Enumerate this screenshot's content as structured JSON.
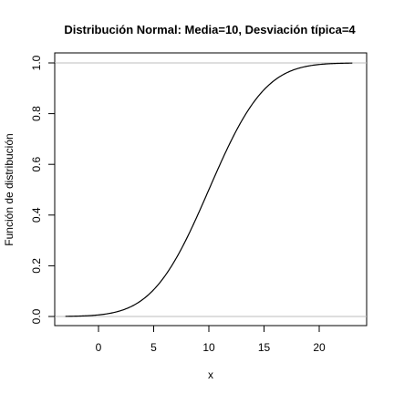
{
  "chart_data": {
    "type": "line",
    "title": "Distribución Normal:  Media=10, Desviación típica=4",
    "xlabel": "x",
    "ylabel": "Función de distribución",
    "distribution": "normal-cdf",
    "mean": 10,
    "sd": 4,
    "xlim": [
      -3,
      23
    ],
    "ylim": [
      0,
      1
    ],
    "x_ticks": [
      0,
      5,
      10,
      15,
      20
    ],
    "x_tick_labels": [
      "0",
      "5",
      "10",
      "15",
      "20"
    ],
    "y_ticks": [
      0,
      0.2,
      0.4,
      0.6,
      0.8,
      1.0
    ],
    "y_tick_labels": [
      "0.0",
      "0.2",
      "0.4",
      "0.6",
      "0.8",
      "1.0"
    ],
    "reference_lines_y": [
      0,
      1
    ],
    "series": [
      {
        "x": [
          -3,
          -2,
          -1,
          0,
          1,
          2,
          3,
          4,
          5,
          6,
          7,
          8,
          9,
          10,
          11,
          12,
          13,
          14,
          15,
          16,
          17,
          18,
          19,
          20,
          21,
          22,
          23
        ],
        "y": [
          0.0006,
          0.0013,
          0.003,
          0.0062,
          0.0122,
          0.0228,
          0.0401,
          0.0668,
          0.1056,
          0.1587,
          0.2266,
          0.3085,
          0.4013,
          0.5,
          0.5987,
          0.6915,
          0.7734,
          0.8413,
          0.8944,
          0.9332,
          0.9599,
          0.9772,
          0.9878,
          0.9938,
          0.997,
          0.9987,
          0.9994
        ]
      }
    ],
    "colors": {
      "line": "#000000",
      "reference": "#bebebe",
      "axis": "#000000"
    }
  }
}
